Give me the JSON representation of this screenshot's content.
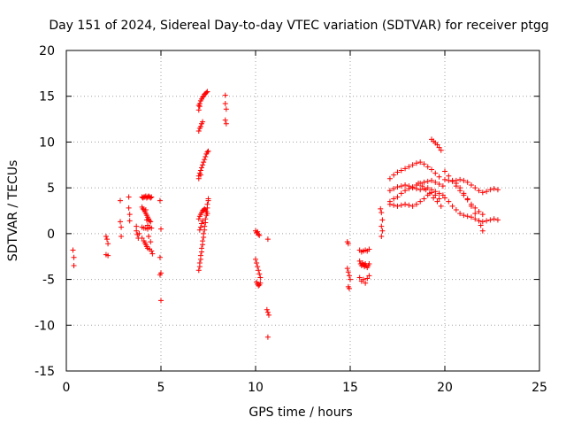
{
  "chart_data": {
    "type": "scatter",
    "title": "Day 151 of 2024, Sidereal Day-to-day VTEC variation (SDTVAR) for receiver ptgg",
    "xlabel": "GPS time / hours",
    "ylabel": "SDTVAR / TECUs",
    "xlim": [
      0,
      25
    ],
    "ylim": [
      -15,
      20
    ],
    "xticks": [
      0,
      5,
      10,
      15,
      20,
      25
    ],
    "yticks": [
      -15,
      -10,
      -5,
      0,
      5,
      10,
      15,
      20
    ],
    "grid": true,
    "marker": "+",
    "color": "#ff0000",
    "series": [
      {
        "name": "SDTVAR",
        "points": [
          [
            0.35,
            -1.8
          ],
          [
            0.4,
            -2.6
          ],
          [
            0.4,
            -3.5
          ],
          [
            2.1,
            -0.3
          ],
          [
            2.15,
            -0.6
          ],
          [
            2.2,
            -1.1
          ],
          [
            2.1,
            -2.3
          ],
          [
            2.2,
            -2.4
          ],
          [
            2.85,
            3.6
          ],
          [
            2.85,
            1.3
          ],
          [
            2.9,
            0.7
          ],
          [
            2.9,
            -0.3
          ],
          [
            3.3,
            4.0
          ],
          [
            3.3,
            2.8
          ],
          [
            3.35,
            2.1
          ],
          [
            3.35,
            1.4
          ],
          [
            3.7,
            0.8
          ],
          [
            3.7,
            0.3
          ],
          [
            3.75,
            -0.1
          ],
          [
            3.8,
            -0.5
          ],
          [
            3.85,
            0.0
          ],
          [
            4.0,
            4.0
          ],
          [
            4.05,
            3.9
          ],
          [
            4.1,
            4.0
          ],
          [
            4.15,
            4.0
          ],
          [
            4.2,
            4.1
          ],
          [
            4.25,
            3.9
          ],
          [
            4.3,
            4.0
          ],
          [
            4.35,
            4.1
          ],
          [
            4.4,
            4.0
          ],
          [
            4.45,
            3.9
          ],
          [
            4.5,
            4.0
          ],
          [
            4.0,
            2.9
          ],
          [
            4.05,
            2.7
          ],
          [
            4.1,
            2.6
          ],
          [
            4.15,
            2.4
          ],
          [
            4.2,
            2.2
          ],
          [
            4.25,
            2.0
          ],
          [
            4.3,
            1.8
          ],
          [
            4.35,
            1.6
          ],
          [
            4.4,
            1.4
          ],
          [
            4.45,
            1.3
          ],
          [
            4.0,
            0.7
          ],
          [
            4.1,
            0.6
          ],
          [
            4.2,
            0.6
          ],
          [
            4.3,
            0.5
          ],
          [
            4.4,
            0.7
          ],
          [
            4.5,
            0.6
          ],
          [
            4.0,
            -0.5
          ],
          [
            4.1,
            -0.8
          ],
          [
            4.15,
            -1.0
          ],
          [
            4.2,
            -1.2
          ],
          [
            4.25,
            -1.4
          ],
          [
            4.3,
            -1.6
          ],
          [
            4.4,
            -1.7
          ],
          [
            4.5,
            -1.9
          ],
          [
            4.55,
            -2.2
          ],
          [
            4.2,
            2.6
          ],
          [
            4.25,
            1.5
          ],
          [
            4.3,
            0.9
          ],
          [
            4.35,
            -0.3
          ],
          [
            4.45,
            -0.9
          ],
          [
            4.95,
            3.6
          ],
          [
            5.0,
            0.5
          ],
          [
            4.95,
            -2.6
          ],
          [
            5.0,
            -4.3
          ],
          [
            4.95,
            -4.5
          ],
          [
            5.0,
            -7.3
          ],
          [
            7.0,
            14.0
          ],
          [
            7.05,
            14.2
          ],
          [
            7.1,
            14.5
          ],
          [
            7.15,
            14.7
          ],
          [
            7.2,
            14.9
          ],
          [
            7.25,
            15.0
          ],
          [
            7.3,
            15.2
          ],
          [
            7.35,
            15.3
          ],
          [
            7.4,
            15.4
          ],
          [
            7.45,
            15.5
          ],
          [
            7.0,
            13.5
          ],
          [
            7.05,
            13.9
          ],
          [
            7.0,
            11.2
          ],
          [
            7.05,
            11.5
          ],
          [
            7.1,
            11.7
          ],
          [
            7.15,
            12.0
          ],
          [
            7.2,
            12.2
          ],
          [
            7.0,
            6.3
          ],
          [
            7.05,
            6.6
          ],
          [
            7.1,
            6.9
          ],
          [
            7.15,
            7.2
          ],
          [
            7.2,
            7.5
          ],
          [
            7.25,
            7.8
          ],
          [
            7.3,
            8.1
          ],
          [
            7.35,
            8.4
          ],
          [
            7.4,
            8.7
          ],
          [
            7.45,
            8.9
          ],
          [
            7.5,
            9.0
          ],
          [
            7.0,
            6.0
          ],
          [
            7.1,
            6.4
          ],
          [
            7.0,
            -4.0
          ],
          [
            7.05,
            -3.6
          ],
          [
            7.05,
            -3.2
          ],
          [
            7.1,
            -2.8
          ],
          [
            7.1,
            -2.4
          ],
          [
            7.15,
            -2.0
          ],
          [
            7.15,
            -1.6
          ],
          [
            7.2,
            -1.2
          ],
          [
            7.2,
            -0.8
          ],
          [
            7.25,
            -0.4
          ],
          [
            7.25,
            0.0
          ],
          [
            7.3,
            0.4
          ],
          [
            7.3,
            0.8
          ],
          [
            7.35,
            1.2
          ],
          [
            7.35,
            1.6
          ],
          [
            7.4,
            2.0
          ],
          [
            7.4,
            2.4
          ],
          [
            7.45,
            2.8
          ],
          [
            7.45,
            3.2
          ],
          [
            7.5,
            3.6
          ],
          [
            7.5,
            3.8
          ],
          [
            7.0,
            1.6
          ],
          [
            7.05,
            1.9
          ],
          [
            7.1,
            2.1
          ],
          [
            7.15,
            2.3
          ],
          [
            7.2,
            2.5
          ],
          [
            7.25,
            2.6
          ],
          [
            7.3,
            2.7
          ],
          [
            7.35,
            2.6
          ],
          [
            7.4,
            2.4
          ],
          [
            7.45,
            2.2
          ],
          [
            7.05,
            0.4
          ],
          [
            7.1,
            0.7
          ],
          [
            7.15,
            1.1
          ],
          [
            7.2,
            1.4
          ],
          [
            8.4,
            15.1
          ],
          [
            8.4,
            14.2
          ],
          [
            8.45,
            13.6
          ],
          [
            8.4,
            12.4
          ],
          [
            8.45,
            12.0
          ],
          [
            10.0,
            0.3
          ],
          [
            10.05,
            0.1
          ],
          [
            10.1,
            0.2
          ],
          [
            10.15,
            -0.1
          ],
          [
            10.2,
            -0.2
          ],
          [
            10.0,
            -2.8
          ],
          [
            10.05,
            -3.2
          ],
          [
            10.1,
            -3.6
          ],
          [
            10.15,
            -4.0
          ],
          [
            10.2,
            -4.4
          ],
          [
            10.25,
            -4.8
          ],
          [
            10.05,
            -5.3
          ],
          [
            10.1,
            -5.5
          ],
          [
            10.15,
            -5.7
          ],
          [
            10.2,
            -5.6
          ],
          [
            10.25,
            -5.4
          ],
          [
            10.65,
            -0.6
          ],
          [
            10.6,
            -8.3
          ],
          [
            10.65,
            -8.6
          ],
          [
            10.7,
            -8.9
          ],
          [
            10.65,
            -11.3
          ],
          [
            14.85,
            -0.9
          ],
          [
            14.9,
            -1.1
          ],
          [
            14.85,
            -3.8
          ],
          [
            14.9,
            -4.2
          ],
          [
            14.95,
            -4.6
          ],
          [
            15.0,
            -5.0
          ],
          [
            14.9,
            -5.8
          ],
          [
            14.95,
            -6.0
          ],
          [
            15.5,
            -3.0
          ],
          [
            15.55,
            -3.3
          ],
          [
            15.6,
            -3.5
          ],
          [
            15.65,
            -3.2
          ],
          [
            15.7,
            -3.4
          ],
          [
            15.75,
            -3.6
          ],
          [
            15.8,
            -3.3
          ],
          [
            15.85,
            -3.5
          ],
          [
            15.9,
            -3.7
          ],
          [
            15.95,
            -3.5
          ],
          [
            16.0,
            -3.3
          ],
          [
            15.5,
            -1.8
          ],
          [
            15.6,
            -2.0
          ],
          [
            15.7,
            -1.9
          ],
          [
            15.8,
            -1.8
          ],
          [
            15.9,
            -1.9
          ],
          [
            16.0,
            -1.7
          ],
          [
            15.5,
            -4.8
          ],
          [
            15.6,
            -5.2
          ],
          [
            15.7,
            -5.0
          ],
          [
            15.8,
            -5.4
          ],
          [
            15.9,
            -4.9
          ],
          [
            16.0,
            -4.6
          ],
          [
            16.6,
            2.7
          ],
          [
            16.65,
            2.3
          ],
          [
            16.7,
            1.5
          ],
          [
            16.65,
            0.8
          ],
          [
            16.7,
            0.3
          ],
          [
            16.65,
            -0.3
          ],
          [
            17.1,
            3.5
          ],
          [
            17.3,
            3.8
          ],
          [
            17.5,
            4.0
          ],
          [
            17.7,
            4.4
          ],
          [
            17.9,
            4.7
          ],
          [
            18.1,
            4.9
          ],
          [
            18.3,
            5.1
          ],
          [
            18.5,
            5.3
          ],
          [
            18.7,
            5.5
          ],
          [
            18.9,
            5.6
          ],
          [
            19.1,
            5.7
          ],
          [
            19.3,
            5.8
          ],
          [
            19.5,
            5.6
          ],
          [
            19.7,
            5.4
          ],
          [
            19.9,
            5.2
          ],
          [
            17.1,
            6.0
          ],
          [
            17.3,
            6.4
          ],
          [
            17.5,
            6.7
          ],
          [
            17.7,
            6.9
          ],
          [
            17.9,
            7.1
          ],
          [
            18.1,
            7.3
          ],
          [
            18.3,
            7.5
          ],
          [
            18.5,
            7.7
          ],
          [
            18.7,
            7.8
          ],
          [
            18.9,
            7.6
          ],
          [
            19.1,
            7.3
          ],
          [
            19.3,
            7.0
          ],
          [
            19.5,
            6.6
          ],
          [
            19.7,
            6.2
          ],
          [
            17.1,
            4.7
          ],
          [
            17.3,
            4.9
          ],
          [
            17.5,
            5.1
          ],
          [
            17.7,
            5.2
          ],
          [
            17.9,
            5.3
          ],
          [
            18.1,
            5.2
          ],
          [
            18.3,
            5.0
          ],
          [
            18.5,
            4.9
          ],
          [
            18.7,
            4.8
          ],
          [
            18.9,
            4.9
          ],
          [
            19.1,
            5.0
          ],
          [
            19.3,
            4.8
          ],
          [
            19.5,
            4.6
          ],
          [
            19.7,
            4.4
          ],
          [
            19.9,
            4.2
          ],
          [
            17.1,
            3.2
          ],
          [
            17.3,
            3.1
          ],
          [
            17.5,
            3.0
          ],
          [
            17.7,
            3.1
          ],
          [
            17.9,
            3.2
          ],
          [
            18.1,
            3.1
          ],
          [
            18.3,
            3.0
          ],
          [
            18.5,
            3.2
          ],
          [
            18.7,
            3.5
          ],
          [
            18.9,
            3.8
          ],
          [
            19.1,
            4.2
          ],
          [
            19.3,
            4.5
          ],
          [
            19.5,
            4.2
          ],
          [
            19.7,
            3.8
          ],
          [
            18.6,
            5.5
          ],
          [
            18.8,
            5.2
          ],
          [
            19.0,
            4.8
          ],
          [
            19.2,
            4.4
          ],
          [
            19.4,
            3.9
          ],
          [
            19.6,
            3.5
          ],
          [
            19.8,
            3.0
          ],
          [
            19.3,
            10.3
          ],
          [
            19.4,
            10.1
          ],
          [
            19.5,
            9.9
          ],
          [
            19.6,
            9.7
          ],
          [
            19.7,
            9.4
          ],
          [
            19.8,
            9.1
          ],
          [
            20.0,
            6.8
          ],
          [
            20.2,
            6.3
          ],
          [
            20.4,
            5.8
          ],
          [
            20.6,
            5.2
          ],
          [
            20.8,
            4.7
          ],
          [
            21.0,
            4.2
          ],
          [
            21.2,
            3.7
          ],
          [
            21.4,
            3.2
          ],
          [
            21.6,
            2.8
          ],
          [
            21.8,
            2.4
          ],
          [
            22.0,
            2.1
          ],
          [
            20.0,
            5.9
          ],
          [
            20.2,
            5.8
          ],
          [
            20.4,
            5.7
          ],
          [
            20.6,
            5.8
          ],
          [
            20.8,
            5.9
          ],
          [
            21.0,
            5.8
          ],
          [
            21.2,
            5.6
          ],
          [
            21.4,
            5.3
          ],
          [
            21.6,
            5.0
          ],
          [
            21.8,
            4.7
          ],
          [
            22.0,
            4.5
          ],
          [
            22.2,
            4.6
          ],
          [
            22.4,
            4.8
          ],
          [
            22.6,
            4.9
          ],
          [
            22.8,
            4.8
          ],
          [
            20.0,
            3.9
          ],
          [
            20.2,
            3.5
          ],
          [
            20.4,
            3.0
          ],
          [
            20.6,
            2.6
          ],
          [
            20.8,
            2.2
          ],
          [
            21.0,
            2.0
          ],
          [
            21.2,
            1.9
          ],
          [
            21.4,
            1.8
          ],
          [
            21.6,
            1.6
          ],
          [
            21.8,
            1.4
          ],
          [
            22.0,
            1.3
          ],
          [
            22.2,
            1.4
          ],
          [
            22.4,
            1.5
          ],
          [
            22.6,
            1.6
          ],
          [
            22.8,
            1.5
          ],
          [
            20.6,
            5.5
          ],
          [
            20.8,
            5.0
          ],
          [
            21.0,
            4.4
          ],
          [
            21.2,
            3.8
          ],
          [
            21.4,
            3.0
          ],
          [
            21.6,
            2.2
          ],
          [
            21.8,
            1.4
          ],
          [
            21.9,
            0.9
          ],
          [
            22.0,
            0.3
          ]
        ]
      }
    ]
  }
}
